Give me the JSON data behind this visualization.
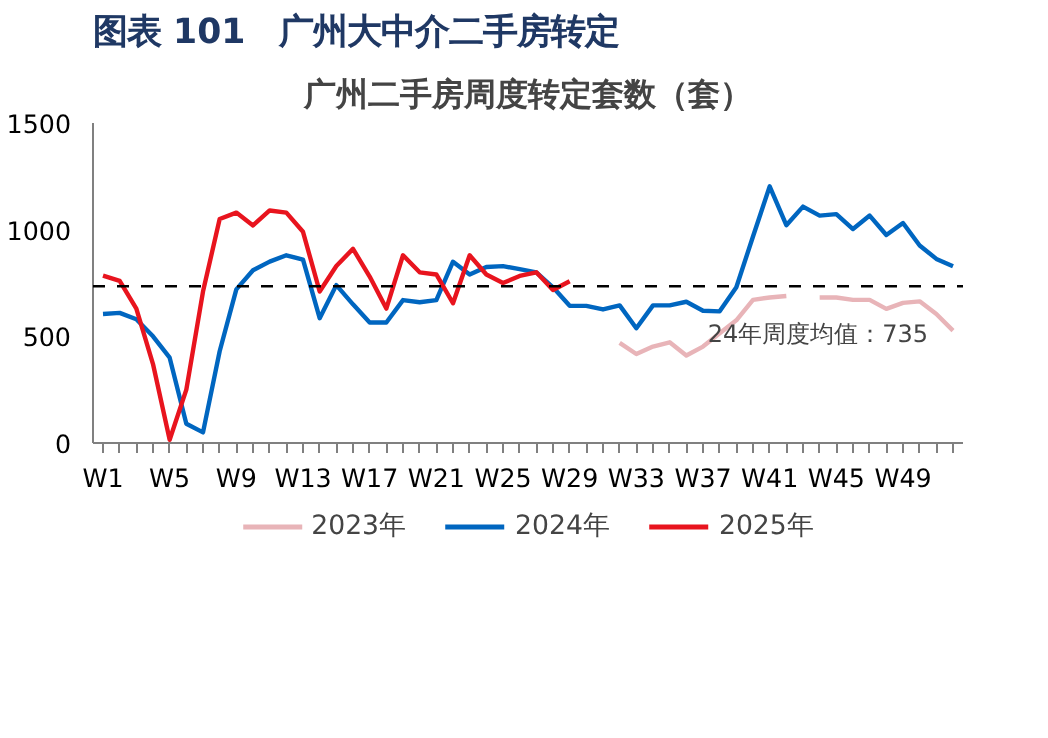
{
  "chart_data": {
    "type": "line",
    "title": "图表 101　广州大中介二手房转定",
    "subtitle": "广州二手房周度转定套数（套）",
    "categories": [
      "W1",
      null,
      null,
      null,
      "W5",
      null,
      null,
      null,
      "W9",
      null,
      null,
      null,
      "W13",
      null,
      null,
      null,
      "W17",
      null,
      null,
      null,
      "W21",
      null,
      null,
      null,
      "W25",
      null,
      null,
      null,
      "W29",
      null,
      null,
      null,
      "W33",
      null,
      null,
      null,
      "W37",
      null,
      null,
      null,
      "W41",
      null,
      null,
      null,
      "W45",
      null,
      null,
      null,
      "W49",
      null,
      null,
      null
    ],
    "series": [
      {
        "name": "2023年",
        "color": "#e8b4b8",
        "values": [
          null,
          null,
          null,
          null,
          null,
          null,
          null,
          null,
          null,
          null,
          null,
          null,
          null,
          null,
          null,
          null,
          null,
          null,
          null,
          null,
          null,
          null,
          null,
          null,
          null,
          null,
          null,
          null,
          null,
          null,
          null,
          469,
          417,
          452,
          472,
          410,
          452,
          514,
          575,
          671,
          682,
          689,
          null,
          682,
          682,
          671,
          671,
          629,
          657,
          664,
          605,
          527
        ]
      },
      {
        "name": "2024年",
        "color": "#0066c0",
        "values": [
          605,
          610,
          580,
          500,
          400,
          90,
          50,
          430,
          720,
          810,
          850,
          880,
          860,
          585,
          740,
          650,
          565,
          565,
          670,
          660,
          670,
          850,
          790,
          825,
          829,
          815,
          800,
          730,
          643,
          643,
          626,
          645,
          538,
          645,
          645,
          662,
          620,
          617,
          730,
          968,
          1203,
          1021,
          1108,
          1066,
          1073,
          1003,
          1066,
          975,
          1031,
          926,
          863,
          829
        ]
      },
      {
        "name": "2025年",
        "color": "#e8141e",
        "values": [
          785,
          760,
          630,
          370,
          15,
          250,
          710,
          1050,
          1080,
          1020,
          1090,
          1080,
          990,
          710,
          830,
          910,
          780,
          630,
          880,
          800,
          790,
          655,
          880,
          790,
          750,
          783,
          800,
          717,
          758,
          null,
          null,
          null,
          null,
          null,
          null,
          null,
          null,
          null,
          null,
          null,
          null,
          null,
          null,
          null,
          null,
          null,
          null,
          null,
          null,
          null,
          null,
          null
        ]
      }
    ],
    "ylim": [
      0,
      1500
    ],
    "yticks": [
      0,
      500,
      1000,
      1500
    ],
    "grid": false,
    "legend": "bottom",
    "marker": "none",
    "line_style": "solid",
    "ref_lines": [
      {
        "axis": "y",
        "value": 735,
        "label": "24年周度均值：735",
        "color": "#000000",
        "line_style": "dashed"
      }
    ]
  }
}
